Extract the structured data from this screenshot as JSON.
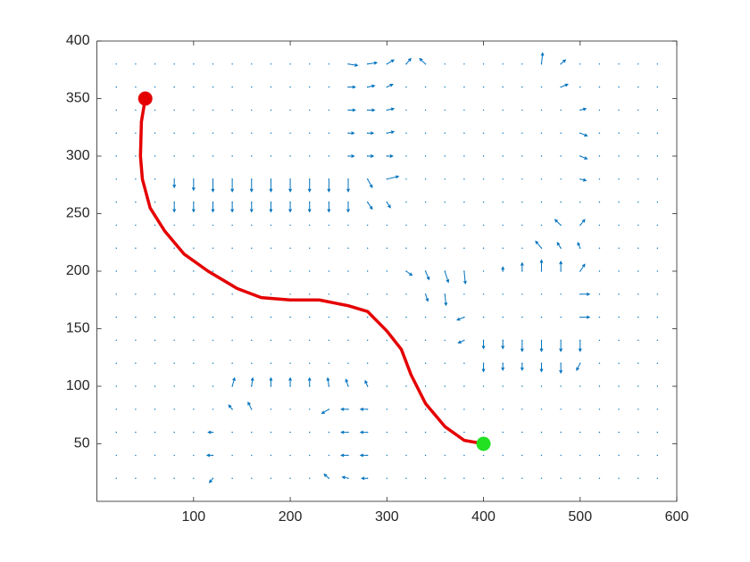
{
  "chart_data": {
    "type": "quiver-path",
    "xlim": [
      0,
      600
    ],
    "ylim": [
      0,
      400
    ],
    "xticks": [
      100,
      200,
      300,
      400,
      500,
      600
    ],
    "yticks": [
      50,
      100,
      150,
      200,
      250,
      300,
      350,
      400
    ],
    "grid": false,
    "field_color": "#0072bd",
    "grid_x": [
      20,
      40,
      60,
      80,
      100,
      120,
      140,
      160,
      180,
      200,
      220,
      240,
      260,
      280,
      300,
      320,
      340,
      360,
      380,
      400,
      420,
      440,
      460,
      480,
      500,
      520,
      540,
      560,
      580
    ],
    "grid_y": [
      20,
      40,
      60,
      80,
      100,
      120,
      140,
      160,
      180,
      200,
      220,
      240,
      260,
      280,
      300,
      320,
      340,
      360,
      380
    ],
    "arrows": {
      "x": [
        80,
        100,
        120,
        140,
        160,
        180,
        200,
        220,
        240,
        260,
        280,
        300,
        80,
        100,
        120,
        140,
        160,
        180,
        200,
        220,
        240,
        260,
        280,
        300,
        260,
        280,
        300,
        320,
        340,
        260,
        280,
        300,
        260,
        280,
        300,
        260,
        280,
        300,
        260,
        280,
        300,
        460,
        480,
        480,
        500,
        500,
        500,
        500,
        480,
        500,
        460,
        480,
        500,
        420,
        440,
        460,
        480,
        500,
        500,
        500,
        380,
        400,
        420,
        440,
        460,
        480,
        500,
        400,
        420,
        440,
        460,
        480,
        500,
        380,
        320,
        340,
        360,
        380,
        340,
        360,
        140,
        160,
        180,
        200,
        220,
        240,
        260,
        280,
        140,
        160,
        240,
        260,
        280,
        120,
        260,
        280,
        120,
        260,
        280,
        120,
        240,
        260,
        280
      ],
      "y": [
        280,
        280,
        280,
        280,
        280,
        280,
        280,
        280,
        280,
        280,
        280,
        280,
        260,
        260,
        260,
        260,
        260,
        260,
        260,
        260,
        260,
        260,
        260,
        260,
        380,
        380,
        380,
        380,
        380,
        360,
        360,
        360,
        340,
        340,
        340,
        320,
        320,
        320,
        300,
        300,
        300,
        380,
        380,
        360,
        340,
        320,
        300,
        280,
        240,
        240,
        220,
        220,
        220,
        200,
        200,
        200,
        200,
        200,
        180,
        160,
        140,
        140,
        140,
        140,
        140,
        140,
        140,
        120,
        120,
        120,
        120,
        120,
        120,
        160,
        200,
        200,
        200,
        200,
        180,
        180,
        100,
        100,
        100,
        100,
        100,
        100,
        100,
        100,
        80,
        80,
        80,
        80,
        80,
        60,
        60,
        60,
        40,
        40,
        40,
        20,
        20,
        20,
        20
      ],
      "u": [
        0,
        0,
        0,
        0,
        0,
        0,
        0,
        0,
        0,
        0,
        4,
        10,
        0,
        0,
        0,
        0,
        0,
        0,
        0,
        0,
        0,
        0,
        4,
        3,
        8,
        8,
        6,
        4,
        -5,
        6,
        6,
        5,
        6,
        6,
        6,
        5,
        5,
        6,
        5,
        5,
        5,
        1,
        4,
        6,
        5,
        6,
        6,
        5,
        -5,
        4,
        -5,
        -3,
        -2,
        0,
        0,
        0,
        0,
        4,
        8,
        8,
        -5,
        0,
        0,
        0,
        0,
        0,
        0,
        0,
        0,
        0,
        0,
        0,
        -3,
        -6,
        5,
        3,
        3,
        1,
        2,
        1,
        2,
        1,
        0,
        0,
        0,
        -1,
        -2,
        -2,
        -3,
        -3,
        -6,
        -6,
        -6,
        -4,
        -6,
        -6,
        -5,
        -6,
        -6,
        -3,
        -4,
        -5,
        -5
      ],
      "v": [
        -6,
        -8,
        -9,
        -9,
        -9,
        -9,
        -9,
        -9,
        -9,
        -9,
        -6,
        2,
        -7,
        -7,
        -7,
        -7,
        -7,
        -7,
        -7,
        -7,
        -7,
        -7,
        -5,
        -4,
        -1,
        1,
        3,
        4,
        4,
        0,
        1,
        2,
        0,
        0,
        1,
        0,
        0,
        1,
        0,
        0,
        0,
        8,
        3,
        2,
        1,
        -2,
        -2,
        -1,
        4,
        4,
        5,
        4,
        4,
        3,
        6,
        8,
        7,
        5,
        0,
        0,
        -2,
        -6,
        -6,
        -8,
        -8,
        -8,
        -8,
        -6,
        -5,
        -5,
        -6,
        -7,
        -5,
        -2,
        -3,
        -6,
        -8,
        -9,
        -5,
        -8,
        6,
        6,
        6,
        6,
        6,
        6,
        5,
        4,
        3,
        5,
        -3,
        0,
        0,
        0,
        0,
        0,
        0,
        0,
        0,
        -3,
        3,
        1,
        0
      ]
    },
    "path": {
      "color": "#e50000",
      "x": [
        50,
        46,
        45,
        47,
        55,
        70,
        90,
        115,
        145,
        170,
        200,
        230,
        260,
        280,
        300,
        315,
        325,
        340,
        360,
        380,
        400
      ],
      "y": [
        350,
        330,
        300,
        280,
        255,
        235,
        215,
        200,
        185,
        177,
        175,
        175,
        170,
        165,
        148,
        132,
        110,
        85,
        65,
        53,
        50
      ]
    },
    "start": {
      "x": 50,
      "y": 350,
      "color": "#e50000"
    },
    "goal": {
      "x": 400,
      "y": 50,
      "color": "#22e022"
    }
  }
}
